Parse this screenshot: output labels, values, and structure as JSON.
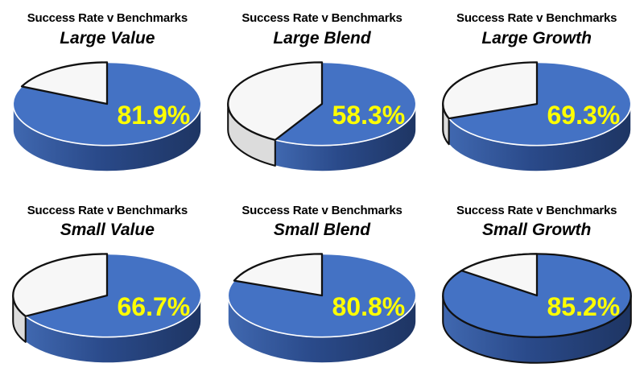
{
  "page": {
    "background": "#FFFFFF"
  },
  "colors": {
    "pie_top": "#4472C4",
    "pie_side_light": "#4068B0",
    "pie_side_mid": "#2A4A8A",
    "pie_side_dark": "#1E3563",
    "slice_remainder": "#F7F7F7",
    "slice_remainder_side": "#DCDCDC",
    "outline_dark": "#111111",
    "outline_light": "#FFFFFF",
    "percent_label": "#FFFF00",
    "title_text": "#000000"
  },
  "chart_data": [
    {
      "type": "pie",
      "title": "Success Rate v Benchmarks",
      "subtitle": "Large Value",
      "value_label": "81.9%",
      "rim": "light",
      "slices": [
        {
          "name": "success",
          "value": 81.9,
          "color": "#4472C4"
        },
        {
          "name": "remainder",
          "value": 18.1,
          "color": "#F7F7F7"
        }
      ]
    },
    {
      "type": "pie",
      "title": "Success Rate v Benchmarks",
      "subtitle": "Large Blend",
      "value_label": "58.3%",
      "rim": "light",
      "slices": [
        {
          "name": "success",
          "value": 58.3,
          "color": "#4472C4"
        },
        {
          "name": "remainder",
          "value": 41.7,
          "color": "#F7F7F7"
        }
      ]
    },
    {
      "type": "pie",
      "title": "Success Rate v Benchmarks",
      "subtitle": "Large Growth",
      "value_label": "69.3%",
      "rim": "light",
      "slices": [
        {
          "name": "success",
          "value": 69.3,
          "color": "#4472C4"
        },
        {
          "name": "remainder",
          "value": 30.7,
          "color": "#F7F7F7"
        }
      ]
    },
    {
      "type": "pie",
      "title": "Success Rate v Benchmarks",
      "subtitle": "Small Value",
      "value_label": "66.7%",
      "rim": "light",
      "slices": [
        {
          "name": "success",
          "value": 66.7,
          "color": "#4472C4"
        },
        {
          "name": "remainder",
          "value": 33.3,
          "color": "#F7F7F7"
        }
      ]
    },
    {
      "type": "pie",
      "title": "Success Rate v Benchmarks",
      "subtitle": "Small Blend",
      "value_label": "80.8%",
      "rim": "light",
      "slices": [
        {
          "name": "success",
          "value": 80.8,
          "color": "#4472C4"
        },
        {
          "name": "remainder",
          "value": 19.2,
          "color": "#F7F7F7"
        }
      ]
    },
    {
      "type": "pie",
      "title": "Success Rate v Benchmarks",
      "subtitle": "Small Growth",
      "value_label": "85.2%",
      "rim": "dark",
      "slices": [
        {
          "name": "success",
          "value": 85.2,
          "color": "#4472C4"
        },
        {
          "name": "remainder",
          "value": 14.8,
          "color": "#F7F7F7"
        }
      ]
    }
  ]
}
